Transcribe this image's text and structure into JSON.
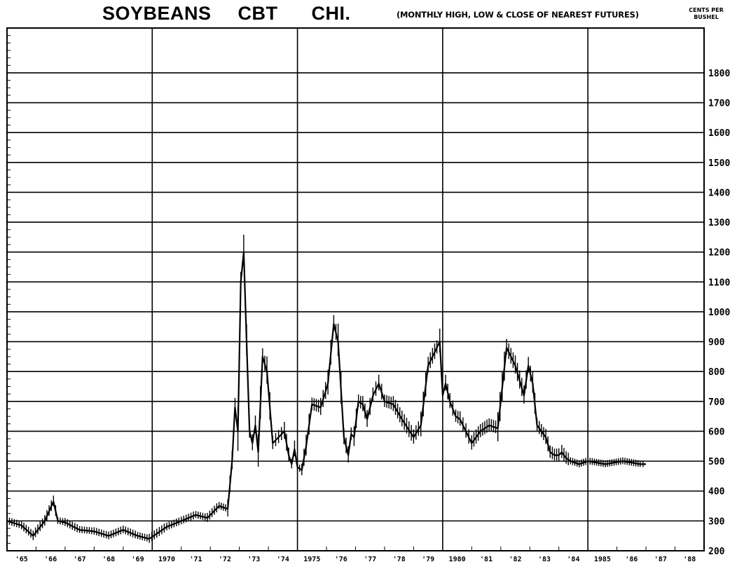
{
  "chart_data": {
    "type": "line",
    "title": "SOYBEANS CBT CHI.",
    "title_parts": [
      "SOYBEANS",
      "CBT",
      "CHI."
    ],
    "subtitle": "(MONTHLY HIGH, LOW & CLOSE OF NEAREST FUTURES)",
    "ylabel": [
      "CENTS PER",
      "BUSHEL"
    ],
    "y_axis_side": "right",
    "ylim": [
      200,
      1950
    ],
    "xlim": [
      1965,
      1989
    ],
    "grid": true,
    "yticks": [
      200,
      300,
      400,
      500,
      600,
      700,
      800,
      900,
      1000,
      1100,
      1200,
      1300,
      1400,
      1500,
      1600,
      1700,
      1800
    ],
    "ytick_labels": [
      "200",
      "300",
      "400",
      "500",
      "600",
      "700",
      "800",
      "900",
      "1000",
      "1100",
      "1200",
      "1300",
      "1400",
      "1500",
      "1600",
      "1700",
      "1800"
    ],
    "xtick_labels": [
      "'65",
      "'66",
      "'67",
      "'68",
      "'69",
      "1970",
      "'71",
      "'72",
      "'73",
      "'74",
      "1975",
      "'76",
      "'77",
      "'78",
      "'79",
      "1980",
      "'81",
      "'82",
      "'83",
      "'84",
      "1985",
      "'86",
      "'87",
      "'88"
    ],
    "series": [
      {
        "x": [
          1965.0,
          1965.5,
          1965.9,
          1966.3,
          1966.6,
          1966.75,
          1967.0,
          1967.5,
          1968.0,
          1968.5,
          1969.0,
          1969.5,
          1969.9,
          1970.5,
          1971.0,
          1971.5,
          1971.9,
          1972.3,
          1972.6,
          1972.75,
          1972.85,
          1972.95,
          1973.05,
          1973.15,
          1973.25,
          1973.35,
          1973.45,
          1973.55,
          1973.65,
          1973.8,
          1973.95,
          1974.15,
          1974.35,
          1974.55,
          1974.7,
          1974.8,
          1974.9,
          1975.0,
          1975.15,
          1975.3,
          1975.5,
          1975.8,
          1976.05,
          1976.25,
          1976.4,
          1976.6,
          1976.75,
          1976.85,
          1976.95,
          1977.1,
          1977.25,
          1977.4,
          1977.6,
          1977.8,
          1978.0,
          1978.3,
          1978.6,
          1979.0,
          1979.25,
          1979.5,
          1979.8,
          1979.9,
          1980.0,
          1980.1,
          1980.25,
          1980.45,
          1980.6,
          1980.8,
          1981.0,
          1981.3,
          1981.6,
          1981.9,
          1982.2,
          1982.5,
          1982.8,
          1982.95,
          1983.1,
          1983.25,
          1983.4,
          1983.55,
          1983.7,
          1983.85,
          1984.0,
          1984.1,
          1984.25,
          1984.4,
          1984.7,
          1985.0,
          1985.3,
          1985.6,
          1985.9,
          1986.2,
          1986.5,
          1986.8,
          1987.0
        ],
        "y": [
          300,
          285,
          250,
          300,
          365,
          300,
          295,
          270,
          265,
          250,
          270,
          250,
          240,
          280,
          300,
          320,
          310,
          350,
          340,
          500,
          680,
          600,
          1100,
          1200,
          900,
          600,
          560,
          620,
          530,
          850,
          800,
          560,
          580,
          600,
          520,
          490,
          540,
          480,
          470,
          550,
          690,
          680,
          760,
          960,
          900,
          580,
          520,
          590,
          580,
          700,
          690,
          640,
          720,
          760,
          700,
          690,
          640,
          580,
          620,
          820,
          880,
          900,
          720,
          760,
          700,
          650,
          640,
          600,
          560,
          600,
          620,
          610,
          880,
          820,
          720,
          820,
          760,
          620,
          600,
          580,
          530,
          520,
          520,
          530,
          510,
          500,
          490,
          500,
          495,
          490,
          495,
          500,
          495,
          490,
          490
        ],
        "values_note": ""
      }
    ]
  }
}
